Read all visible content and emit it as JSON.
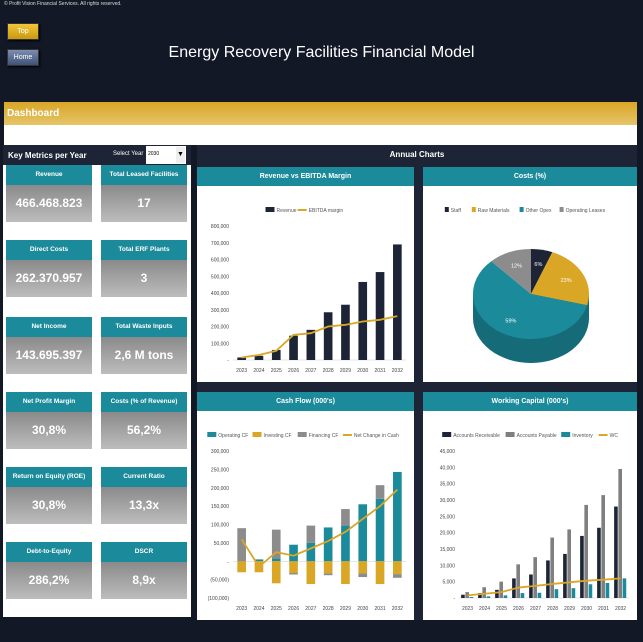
{
  "copyright": "© Profit Vision Financial Services. All rights reserved.",
  "nav": {
    "top_label": "Top",
    "home_label": "Home"
  },
  "title": "Energy Recovery Facilities Financial Model",
  "section": "Dashboard",
  "metrics_panel": {
    "title": "Key Metrics per Year",
    "select_label": "Select Year",
    "selected_year": "2030",
    "cards": [
      {
        "label": "Revenue",
        "value": "466.468.823"
      },
      {
        "label": "Total Leased Facilities",
        "value": "17"
      },
      {
        "label": "Direct Costs",
        "value": "262.370.957"
      },
      {
        "label": "Total ERF Plants",
        "value": "3"
      },
      {
        "label": "Net Income",
        "value": "143.695.397"
      },
      {
        "label": "Total Waste Inputs",
        "value": "2,6 M tons"
      },
      {
        "label": "Net Profit Margin",
        "value": "30,8%"
      },
      {
        "label": "Costs (% of Revenue)",
        "value": "56,2%"
      },
      {
        "label": "Return on Equity (ROE)",
        "value": "30,8%"
      },
      {
        "label": "Current Ratio",
        "value": "13,3x"
      },
      {
        "label": "Debt-to-Equity",
        "value": "286,2%"
      },
      {
        "label": "DSCR",
        "value": "8,9x"
      }
    ]
  },
  "charts_panel": {
    "title": "Annual Charts"
  },
  "colors": {
    "navy": "#1c2435",
    "gold": "#d9a626",
    "teal": "#1b8a9a",
    "gray": "#8c8c8c"
  },
  "chart_data": [
    {
      "type": "bar",
      "title": "Revenue vs EBITDA Margin",
      "categories": [
        "2023",
        "2024",
        "2025",
        "2026",
        "2027",
        "2028",
        "2029",
        "2030",
        "2031",
        "2032"
      ],
      "ylim": [
        0,
        800000
      ],
      "yticks": [
        "-",
        "100,000",
        "200,000",
        "300,000",
        "400,000",
        "500,000",
        "600,000",
        "700,000",
        "800,000"
      ],
      "legend": "top",
      "series": [
        {
          "name": "Revenue",
          "kind": "bar",
          "color": "#1c2435",
          "values": [
            15000,
            25000,
            60000,
            145000,
            180000,
            285000,
            330000,
            466000,
            525000,
            690000
          ]
        },
        {
          "name": "EBITDA margin",
          "kind": "line",
          "color": "#d9a626",
          "values": [
            15000,
            30000,
            55000,
            150000,
            160000,
            200000,
            210000,
            230000,
            240000,
            262000
          ]
        }
      ]
    },
    {
      "type": "pie",
      "title": "Costs (%)",
      "legend": "top",
      "slices": [
        {
          "name": "Staff",
          "value": 6,
          "label": "6%",
          "color": "#1c2435"
        },
        {
          "name": "Raw Materials",
          "value": 23,
          "label": "23%",
          "color": "#d9a626"
        },
        {
          "name": "Other Opex",
          "value": 59,
          "label": "59%",
          "color": "#1b8a9a"
        },
        {
          "name": "Operating Leases",
          "value": 12,
          "label": "12%",
          "color": "#8c8c8c"
        }
      ]
    },
    {
      "type": "bar",
      "stacked": true,
      "title": "Cash Flow (000's)",
      "categories": [
        "2023",
        "2024",
        "2025",
        "2026",
        "2027",
        "2028",
        "2029",
        "2030",
        "2031",
        "2032"
      ],
      "ylim": [
        -100000,
        300000
      ],
      "yticks": [
        "(100,000)",
        "(50,000)",
        "-",
        "50,000",
        "100,000",
        "150,000",
        "200,000",
        "250,000",
        "300,000"
      ],
      "legend": "top",
      "series": [
        {
          "name": "Operating CF",
          "kind": "bar",
          "color": "#1b8a9a",
          "values": [
            0,
            5000,
            8000,
            45000,
            50000,
            92000,
            97000,
            155000,
            170000,
            243000
          ]
        },
        {
          "name": "Investing CF",
          "kind": "bar",
          "color": "#d9a626",
          "values": [
            -30000,
            -30000,
            -60000,
            -32000,
            -62000,
            -33000,
            -62000,
            -33000,
            -62000,
            -35000
          ]
        },
        {
          "name": "Financing CF",
          "kind": "bar",
          "color": "#8c8c8c",
          "values": [
            90000,
            0,
            78000,
            -4000,
            47000,
            -5000,
            45000,
            -10000,
            37000,
            -10000
          ]
        },
        {
          "name": "Net Change in Cash",
          "kind": "line",
          "color": "#d9a626",
          "values": [
            60000,
            -15000,
            25000,
            15000,
            35000,
            55000,
            80000,
            115000,
            150000,
            195000
          ]
        }
      ]
    },
    {
      "type": "bar",
      "title": "Working Capital (000's)",
      "categories": [
        "2023",
        "2024",
        "2025",
        "2026",
        "2027",
        "2028",
        "2029",
        "2030",
        "2031",
        "2032"
      ],
      "ylim": [
        0,
        45000
      ],
      "yticks": [
        "-",
        "5,000",
        "10,000",
        "15,000",
        "20,000",
        "25,000",
        "30,000",
        "35,000",
        "40,000",
        "45,000"
      ],
      "legend": "top",
      "series": [
        {
          "name": "Accounts Receivable",
          "kind": "bar",
          "color": "#1c2435",
          "values": [
            1000,
            1500,
            2500,
            6000,
            7200,
            11500,
            13500,
            19000,
            21500,
            28000
          ]
        },
        {
          "name": "Accounts Payable",
          "kind": "bar",
          "color": "#7f7f7f",
          "values": [
            1800,
            3300,
            5000,
            10300,
            12500,
            18500,
            21000,
            28500,
            31500,
            39500
          ]
        },
        {
          "name": "Inventory",
          "kind": "bar",
          "color": "#1b8a9a",
          "values": [
            300,
            500,
            800,
            1500,
            1600,
            2700,
            3000,
            4200,
            4600,
            6000
          ]
        },
        {
          "name": "WC",
          "kind": "line",
          "color": "#d9a626",
          "values": [
            800,
            1300,
            1800,
            3200,
            3700,
            4300,
            4800,
            5300,
            5600,
            6000
          ]
        }
      ]
    }
  ]
}
